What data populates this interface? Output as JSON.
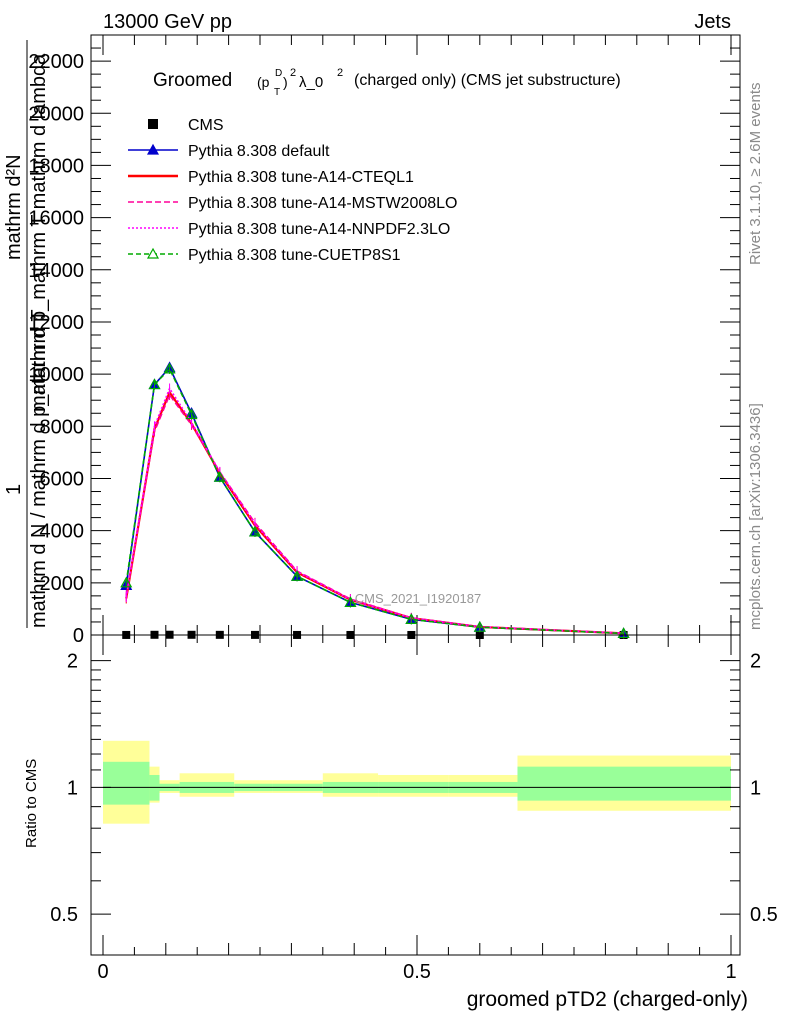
{
  "header": {
    "left": "13000 GeV pp",
    "right": "Jets"
  },
  "side_labels": {
    "rivet": "Rivet 3.1.10, ≥ 2.6M events",
    "mcplots": "mcplots.cern.ch [arXiv:1306.3436]"
  },
  "chart_data": [
    {
      "type": "line",
      "title_main": "Groomed",
      "title_formula": "(p",
      "title_sub": "T",
      "title_sup": "D",
      "title_rest": "λ_0",
      "title_tail": "(charged only) (CMS jet substructure)",
      "ylabel_top": "mathrm d²N",
      "ylabel_mid": "mathrm d p_mathrm T mathrm d lambda",
      "ylabel_frac": "1",
      "ylabel_bottom": "mathrm d N / mathrm d p_mathrm T",
      "watermark": "CMS_2021_I1920187",
      "xlim": [
        0,
        1
      ],
      "ylim": [
        0,
        23000
      ],
      "yticks": [
        0,
        2000,
        4000,
        6000,
        8000,
        10000,
        12000,
        14000,
        16000,
        18000,
        20000,
        22000
      ],
      "ytick_labels": [
        "0",
        "2000",
        "4000",
        "6000",
        "8000",
        "10000",
        "12000",
        "14000",
        "16000",
        "18000",
        "20000",
        "22000"
      ],
      "legend_position": "top-left",
      "series": [
        {
          "name": "CMS",
          "style": "points",
          "color": "#000000",
          "x": [
            0.037,
            0.082,
            0.106,
            0.141,
            0.186,
            0.242,
            0.309,
            0.394,
            0.491,
            0.6,
            0.829
          ],
          "y": [
            2,
            8,
            10,
            8,
            6,
            4,
            2,
            1,
            0.5,
            0.2,
            0.05
          ]
        },
        {
          "name": "Pythia 8.308 default",
          "style": "line-triangle",
          "color": "#0000cc",
          "x": [
            0.037,
            0.082,
            0.106,
            0.141,
            0.186,
            0.242,
            0.309,
            0.394,
            0.491,
            0.6,
            0.829
          ],
          "y": [
            1900,
            9600,
            10250,
            8500,
            6050,
            3950,
            2250,
            1250,
            600,
            300,
            60
          ]
        },
        {
          "name": "Pythia 8.308 tune-A14-CTEQL1",
          "style": "solid",
          "color": "#ff0000",
          "x": [
            0.037,
            0.082,
            0.106,
            0.141,
            0.186,
            0.242,
            0.309,
            0.394,
            0.491,
            0.6,
            0.829
          ],
          "y": [
            1400,
            7900,
            9300,
            8100,
            6200,
            4200,
            2400,
            1350,
            650,
            310,
            65
          ]
        },
        {
          "name": "Pythia 8.308 tune-A14-MSTW2008LO",
          "style": "dashed",
          "color": "#ff0099",
          "x": [
            0.037,
            0.082,
            0.106,
            0.141,
            0.186,
            0.242,
            0.309,
            0.394,
            0.491,
            0.6,
            0.829
          ],
          "y": [
            1500,
            7800,
            9200,
            8050,
            6250,
            4300,
            2450,
            1380,
            660,
            320,
            70
          ]
        },
        {
          "name": "Pythia 8.308 tune-A14-NNPDF2.3LO",
          "style": "dotted",
          "color": "#ff00ff",
          "x": [
            0.037,
            0.082,
            0.106,
            0.141,
            0.186,
            0.242,
            0.309,
            0.394,
            0.491,
            0.6,
            0.829
          ],
          "y": [
            1450,
            8000,
            9450,
            8150,
            6250,
            4250,
            2430,
            1360,
            650,
            315,
            66
          ]
        },
        {
          "name": "Pythia 8.308 tune-CUETP8S1",
          "style": "dashed-triangle-open",
          "color": "#00aa00",
          "x": [
            0.037,
            0.082,
            0.106,
            0.141,
            0.186,
            0.242,
            0.309,
            0.394,
            0.491,
            0.6,
            0.829
          ],
          "y": [
            2000,
            9600,
            10200,
            8450,
            6050,
            3950,
            2250,
            1250,
            600,
            300,
            60
          ]
        }
      ]
    },
    {
      "type": "area",
      "ylabel": "Ratio to CMS",
      "xlabel": "groomed pTD2 (charged-only)",
      "xlim": [
        0,
        1
      ],
      "ylim": [
        0.4,
        2.3
      ],
      "xticks": [
        0,
        0.5,
        1
      ],
      "xtick_labels": [
        "0",
        "0.5",
        "1"
      ],
      "yticks": [
        0.5,
        1,
        2
      ],
      "ytick_labels": [
        "0.5",
        "1",
        "2"
      ],
      "reference_line": 1,
      "bins": [
        {
          "lo": 0.0,
          "hi": 0.074,
          "inner": [
            0.91,
            1.15
          ],
          "outer": [
            0.82,
            1.29
          ]
        },
        {
          "lo": 0.074,
          "hi": 0.09,
          "inner": [
            0.93,
            1.07
          ],
          "outer": [
            0.92,
            1.12
          ]
        },
        {
          "lo": 0.09,
          "hi": 0.122,
          "inner": [
            0.98,
            1.02
          ],
          "outer": [
            0.97,
            1.04
          ]
        },
        {
          "lo": 0.122,
          "hi": 0.209,
          "inner": [
            0.97,
            1.03
          ],
          "outer": [
            0.95,
            1.08
          ]
        },
        {
          "lo": 0.209,
          "hi": 0.27,
          "inner": [
            0.98,
            1.02
          ],
          "outer": [
            0.97,
            1.04
          ]
        },
        {
          "lo": 0.27,
          "hi": 0.35,
          "inner": [
            0.98,
            1.02
          ],
          "outer": [
            0.97,
            1.04
          ]
        },
        {
          "lo": 0.35,
          "hi": 0.438,
          "inner": [
            0.97,
            1.03
          ],
          "outer": [
            0.95,
            1.08
          ]
        },
        {
          "lo": 0.438,
          "hi": 0.55,
          "inner": [
            0.97,
            1.03
          ],
          "outer": [
            0.95,
            1.07
          ]
        },
        {
          "lo": 0.55,
          "hi": 0.66,
          "inner": [
            0.97,
            1.03
          ],
          "outer": [
            0.95,
            1.07
          ]
        },
        {
          "lo": 0.66,
          "hi": 1.0,
          "inner": [
            0.93,
            1.12
          ],
          "outer": [
            0.88,
            1.19
          ]
        }
      ],
      "inner_color": "#99ff99",
      "outer_color": "#ffff99"
    }
  ]
}
